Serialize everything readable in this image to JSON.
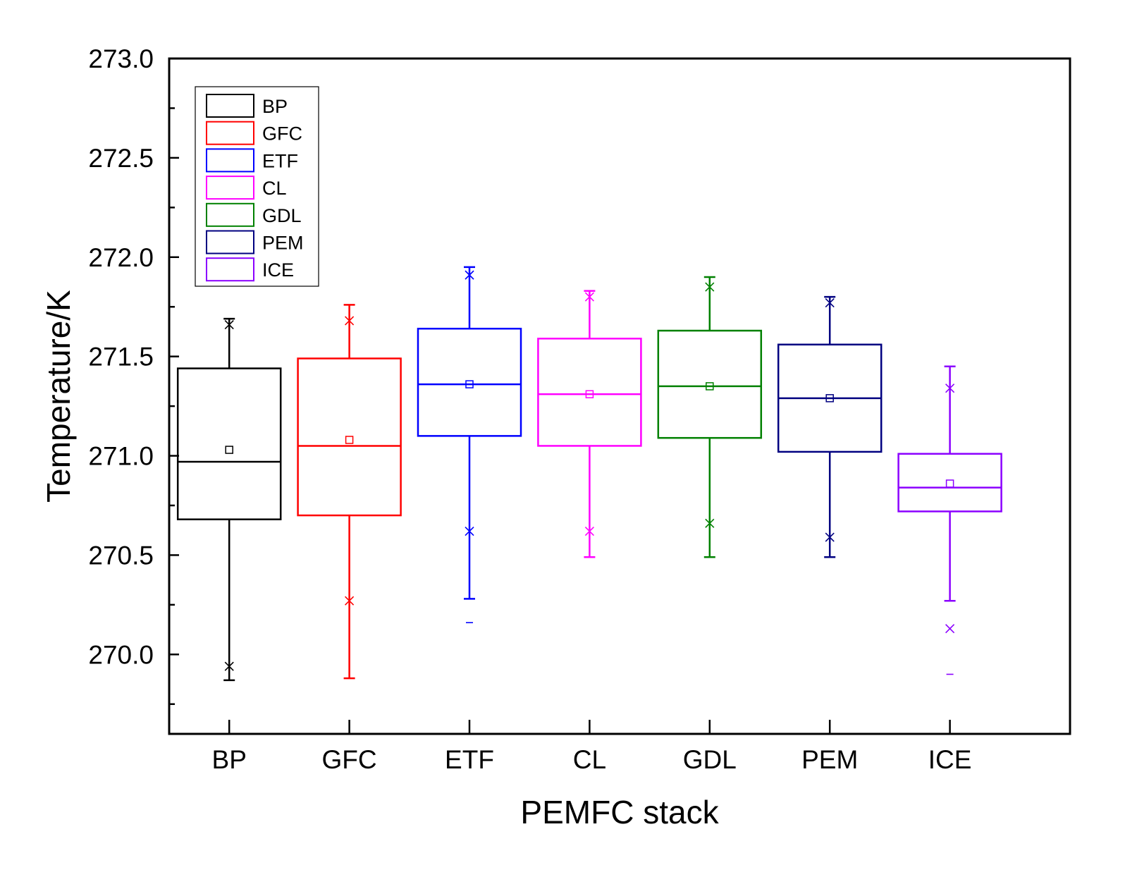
{
  "chart_data": {
    "type": "box",
    "title": "",
    "xlabel": "PEMFC stack",
    "ylabel": "Temperature/K",
    "ylim": [
      269.6,
      273.0
    ],
    "yticks": [
      "270.0",
      "270.5",
      "271.0",
      "271.5",
      "272.0",
      "272.5",
      "273.0"
    ],
    "categories": [
      "BP",
      "GFC",
      "ETF",
      "CL",
      "GDL",
      "PEM",
      "ICE"
    ],
    "legend": {
      "position": "top-left",
      "entries": [
        "BP",
        "GFC",
        "ETF",
        "CL",
        "GDL",
        "PEM",
        "ICE"
      ]
    },
    "series": [
      {
        "name": "BP",
        "color": "#000000",
        "whisker_low": 269.87,
        "q1": 270.68,
        "median": 270.97,
        "q3": 271.44,
        "whisker_high": 271.69,
        "mean": 271.03,
        "p1": 269.94,
        "p99": 271.66,
        "min": null,
        "max": null
      },
      {
        "name": "GFC",
        "color": "#ff0000",
        "whisker_low": 269.88,
        "q1": 270.7,
        "median": 271.05,
        "q3": 271.49,
        "whisker_high": 271.76,
        "mean": 271.08,
        "p1": 270.27,
        "p99": 271.68,
        "min": null,
        "max": null
      },
      {
        "name": "ETF",
        "color": "#0000ff",
        "whisker_low": 270.28,
        "q1": 271.1,
        "median": 271.36,
        "q3": 271.64,
        "whisker_high": 271.95,
        "mean": 271.36,
        "p1": 270.62,
        "p99": 271.91,
        "min": 270.16,
        "max": null
      },
      {
        "name": "CL",
        "color": "#ff00ff",
        "whisker_low": 270.49,
        "q1": 271.05,
        "median": 271.31,
        "q3": 271.59,
        "whisker_high": 271.83,
        "mean": 271.31,
        "p1": 270.62,
        "p99": 271.8,
        "min": null,
        "max": null
      },
      {
        "name": "GDL",
        "color": "#008000",
        "whisker_low": 270.49,
        "q1": 271.09,
        "median": 271.35,
        "q3": 271.63,
        "whisker_high": 271.9,
        "mean": 271.35,
        "p1": 270.66,
        "p99": 271.85,
        "min": null,
        "max": null
      },
      {
        "name": "PEM",
        "color": "#000080",
        "whisker_low": 270.49,
        "q1": 271.02,
        "median": 271.29,
        "q3": 271.56,
        "whisker_high": 271.8,
        "mean": 271.29,
        "p1": 270.59,
        "p99": 271.77,
        "min": null,
        "max": null
      },
      {
        "name": "ICE",
        "color": "#8b00ff",
        "whisker_low": 270.27,
        "q1": 270.72,
        "median": 270.84,
        "q3": 271.01,
        "whisker_high": 271.45,
        "mean": 270.86,
        "p1": 270.13,
        "p99": 271.34,
        "min": 269.9,
        "max": null
      }
    ]
  }
}
